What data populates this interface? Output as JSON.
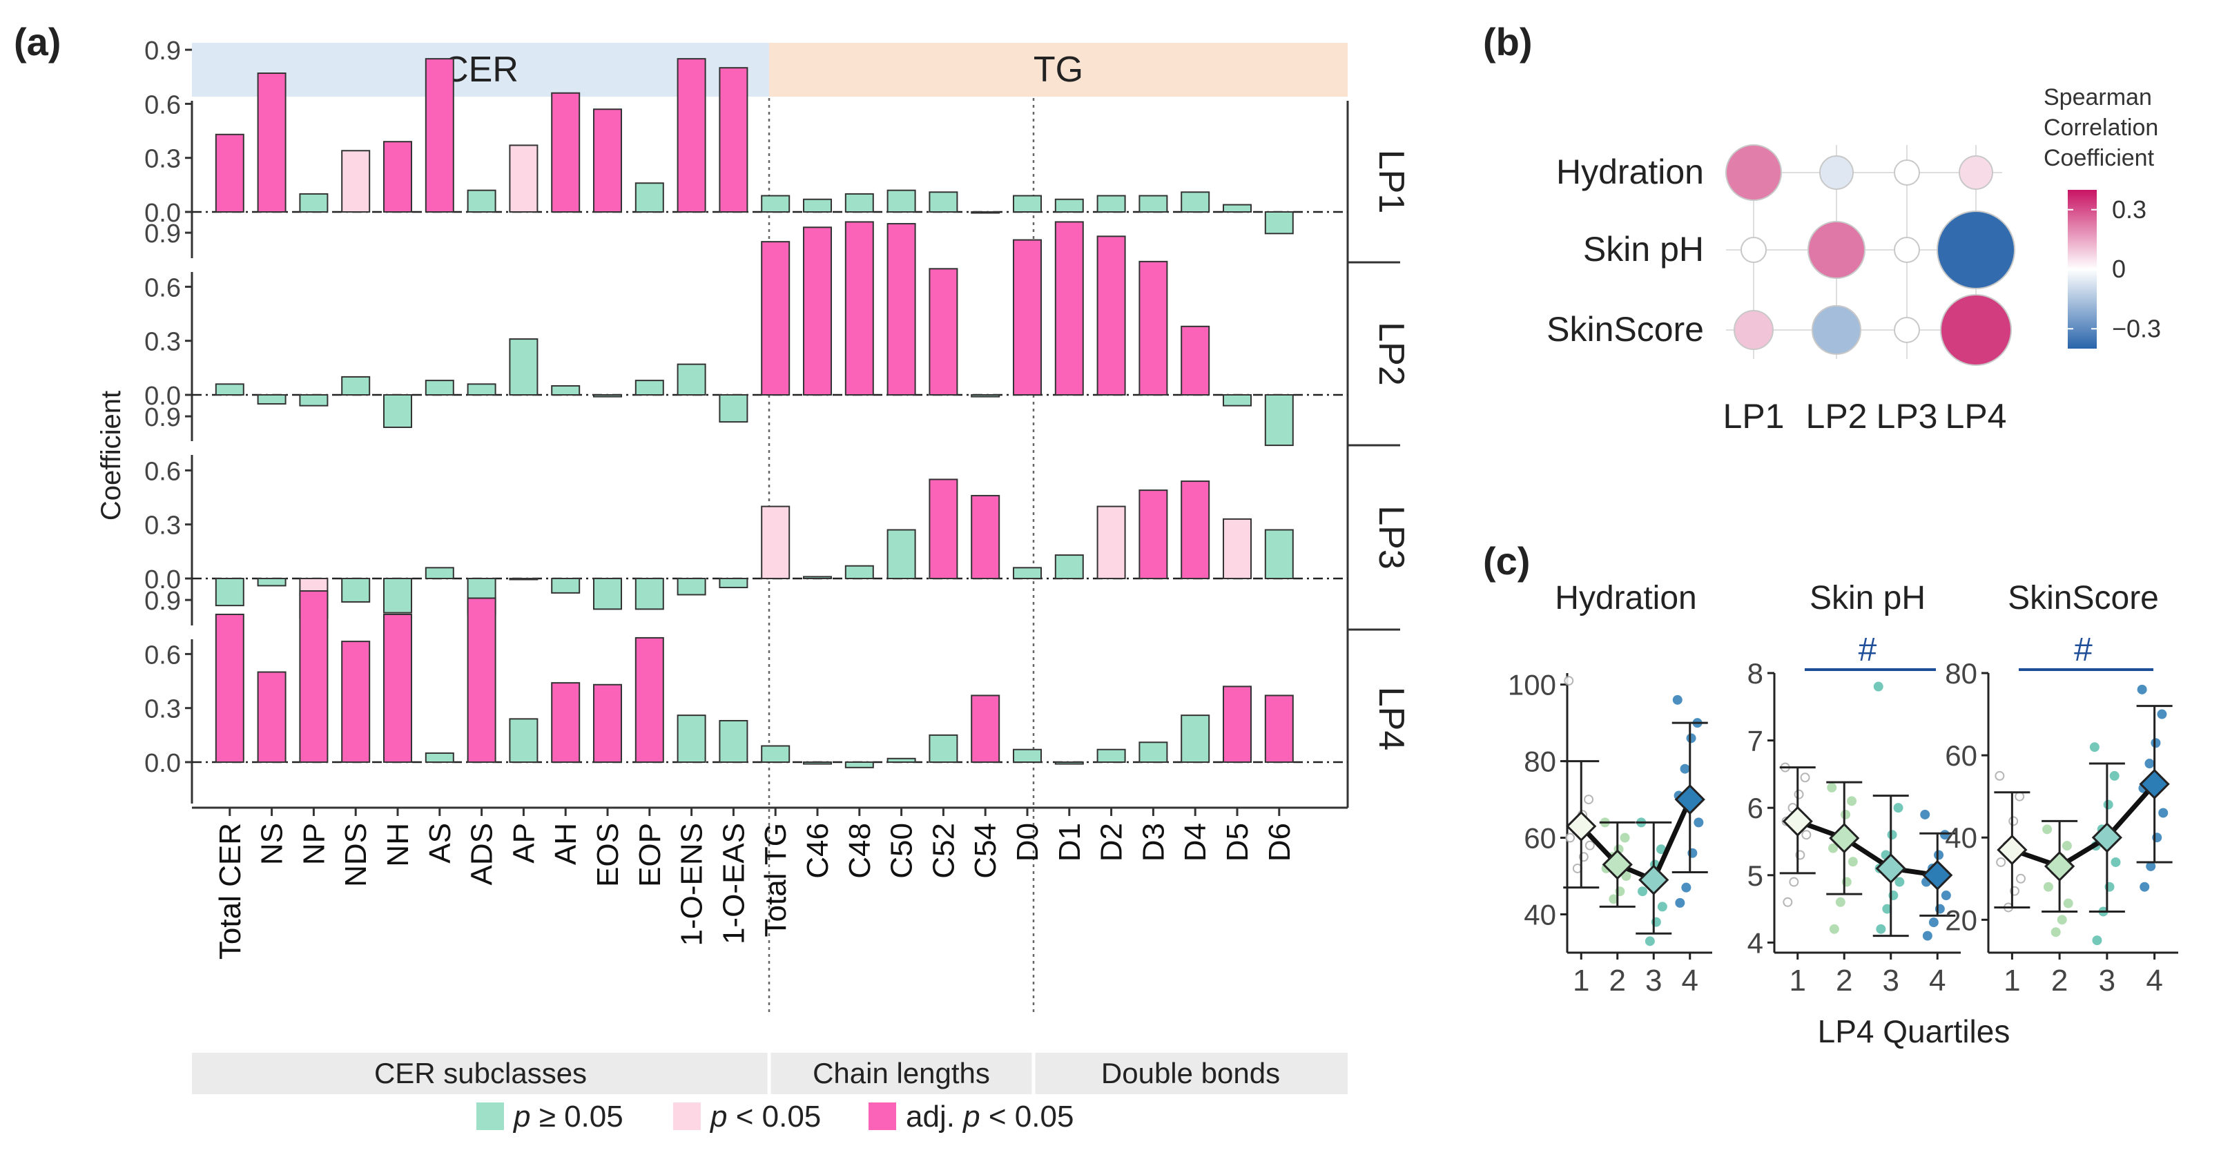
{
  "panel_labels": {
    "a": "(a)",
    "b": "(b)",
    "c": "(c)"
  },
  "colors": {
    "ns": "#9fe0c8",
    "p": "#fdd7e3",
    "adj": "#fb63b8",
    "cer_strip": "#dde8f5",
    "tg_strip": "#fbe3d2",
    "bottom_strip": "#ebebeb",
    "hash": "#1f4e99"
  },
  "legend": {
    "items": [
      {
        "key": "ns",
        "pre": "p",
        "post": " ≥ 0.05"
      },
      {
        "key": "p",
        "pre": "p",
        "post": " < 0.05"
      },
      {
        "key": "adj",
        "pre": "adj. p",
        "post": " < 0.05"
      }
    ]
  },
  "chart_data": [
    {
      "id": "a",
      "type": "bar",
      "ylabel": "Coefficient",
      "ylim": [
        -0.25,
        1.0
      ],
      "yticks": [
        "0.9",
        "0.6",
        "0.3",
        "0.0"
      ],
      "top_strips": [
        "CER",
        "TG"
      ],
      "bottom_strips": [
        "CER subclasses",
        "Chain lengths",
        "Double bonds"
      ],
      "categories": [
        "Total CER",
        "NS",
        "NP",
        "NDS",
        "NH",
        "AS",
        "ADS",
        "AP",
        "AH",
        "EOS",
        "EOP",
        "1-O-ENS",
        "1-O-EAS",
        "Total TG",
        "C46",
        "C48",
        "C50",
        "C52",
        "C54",
        "D0",
        "D1",
        "D2",
        "D3",
        "D4",
        "D5",
        "D6"
      ],
      "series": [
        {
          "name": "LP1",
          "values": [
            0.43,
            0.77,
            0.1,
            0.34,
            0.39,
            0.85,
            0.12,
            0.37,
            0.66,
            0.57,
            0.16,
            0.85,
            0.8,
            0.09,
            0.07,
            0.1,
            0.12,
            0.11,
            0.0,
            0.09,
            0.07,
            0.09,
            0.09,
            0.11,
            0.04,
            -0.12
          ],
          "sig": [
            "adj",
            "adj",
            "ns",
            "p",
            "adj",
            "adj",
            "ns",
            "p",
            "adj",
            "adj",
            "ns",
            "adj",
            "adj",
            "ns",
            "ns",
            "ns",
            "ns",
            "ns",
            "ns",
            "ns",
            "ns",
            "ns",
            "ns",
            "ns",
            "ns",
            "ns"
          ]
        },
        {
          "name": "LP2",
          "values": [
            0.06,
            -0.05,
            -0.06,
            0.1,
            -0.18,
            0.08,
            0.06,
            0.31,
            0.05,
            -0.01,
            0.08,
            0.17,
            -0.15,
            0.85,
            0.93,
            0.96,
            0.95,
            0.7,
            -0.01,
            0.86,
            0.96,
            0.88,
            0.74,
            0.38,
            -0.06,
            -0.28
          ],
          "sig": [
            "ns",
            "ns",
            "ns",
            "ns",
            "ns",
            "ns",
            "ns",
            "ns",
            "ns",
            "ns",
            "ns",
            "ns",
            "ns",
            "adj",
            "adj",
            "adj",
            "adj",
            "adj",
            "ns",
            "adj",
            "adj",
            "adj",
            "adj",
            "adj",
            "ns",
            "ns"
          ]
        },
        {
          "name": "LP3",
          "values": [
            -0.15,
            -0.04,
            -0.22,
            -0.13,
            -0.19,
            0.06,
            -0.2,
            0.0,
            -0.08,
            -0.17,
            -0.17,
            -0.09,
            -0.05,
            0.4,
            0.01,
            0.07,
            0.27,
            0.55,
            0.46,
            0.06,
            0.13,
            0.4,
            0.49,
            0.54,
            0.33,
            0.27
          ],
          "sig": [
            "ns",
            "ns",
            "p",
            "ns",
            "ns",
            "ns",
            "ns",
            "ns",
            "ns",
            "ns",
            "ns",
            "ns",
            "ns",
            "p",
            "ns",
            "ns",
            "ns",
            "adj",
            "adj",
            "ns",
            "ns",
            "p",
            "adj",
            "adj",
            "p",
            "ns"
          ]
        },
        {
          "name": "LP4",
          "values": [
            0.82,
            0.5,
            0.95,
            0.67,
            0.82,
            0.05,
            0.91,
            0.24,
            0.44,
            0.43,
            0.69,
            0.26,
            0.23,
            0.09,
            -0.01,
            -0.03,
            0.02,
            0.15,
            0.37,
            0.07,
            -0.01,
            0.07,
            0.11,
            0.26,
            0.42,
            0.37
          ],
          "sig": [
            "adj",
            "adj",
            "adj",
            "adj",
            "adj",
            "ns",
            "adj",
            "ns",
            "adj",
            "adj",
            "adj",
            "ns",
            "ns",
            "ns",
            "ns",
            "ns",
            "ns",
            "ns",
            "adj",
            "ns",
            "ns",
            "ns",
            "ns",
            "ns",
            "adj",
            "adj"
          ]
        }
      ]
    },
    {
      "id": "b",
      "type": "heatmap",
      "title": "Spearman Correlation Coefficient",
      "rows": [
        "Hydration",
        "Skin pH",
        "SkinScore"
      ],
      "columns": [
        "LP1",
        "LP2",
        "LP3",
        "LP4"
      ],
      "values": [
        [
          0.22,
          -0.06,
          0.0,
          0.06
        ],
        [
          0.0,
          0.23,
          0.0,
          -0.38
        ],
        [
          0.1,
          -0.17,
          0.0,
          0.33
        ]
      ],
      "colorbar_range": [
        -0.4,
        0.4
      ],
      "colorbar_ticks": [
        {
          "value": 0.3,
          "label": "0.3"
        },
        {
          "value": 0,
          "label": "0"
        },
        {
          "value": -0.3,
          "label": "−0.3"
        }
      ]
    },
    {
      "id": "c",
      "type": "scatter",
      "xlabel": "LP4 Quartiles",
      "panels": [
        {
          "title": "Hydration",
          "ylim": [
            30,
            103
          ],
          "yticks": [
            40,
            60,
            80,
            100
          ],
          "significance": "",
          "means": [
            63,
            53,
            49,
            70
          ],
          "error_low": [
            47,
            42,
            35,
            51
          ],
          "error_high": [
            80,
            64,
            64,
            90
          ],
          "points": [
            [
              101,
              70,
              66,
              62,
              60,
              58,
              55,
              52
            ],
            [
              64,
              60,
              57,
              55,
              52,
              50,
              46,
              44
            ],
            [
              64,
              57,
              53,
              50,
              46,
              42,
              38,
              33
            ],
            [
              96,
              90,
              86,
              78,
              71,
              64,
              56,
              47,
              43
            ]
          ]
        },
        {
          "title": "Skin pH",
          "ylim": [
            3.85,
            8.0
          ],
          "yticks": [
            4,
            5,
            6,
            7,
            8
          ],
          "significance": "#",
          "means": [
            5.8,
            5.55,
            5.1,
            5.0
          ],
          "error_low": [
            5.03,
            4.72,
            4.1,
            4.4
          ],
          "error_high": [
            6.6,
            6.38,
            6.18,
            5.62
          ],
          "points": [
            [
              6.6,
              6.45,
              6.2,
              6.0,
              5.8,
              5.6,
              5.3,
              4.9,
              4.6
            ],
            [
              6.3,
              6.1,
              5.9,
              5.6,
              5.4,
              5.2,
              4.9,
              4.6,
              4.2
            ],
            [
              7.8,
              6.0,
              5.6,
              5.3,
              5.1,
              4.9,
              4.7,
              4.5,
              4.2
            ],
            [
              5.9,
              5.6,
              5.3,
              5.1,
              4.9,
              4.7,
              4.5,
              4.3,
              4.1
            ]
          ]
        },
        {
          "title": "SkinScore",
          "ylim": [
            12,
            80
          ],
          "yticks": [
            20,
            40,
            60,
            80
          ],
          "significance": "#",
          "means": [
            37,
            33,
            40,
            53
          ],
          "error_low": [
            23,
            22,
            22,
            34
          ],
          "error_high": [
            51,
            44,
            58,
            72
          ],
          "points": [
            [
              55,
              50,
              44,
              38,
              34,
              30,
              27,
              23
            ],
            [
              42,
              38,
              35,
              32,
              28,
              24,
              20,
              17
            ],
            [
              62,
              55,
              48,
              42,
              38,
              34,
              28,
              22,
              15
            ],
            [
              76,
              70,
              63,
              58,
              52,
              46,
              40,
              33,
              28
            ]
          ]
        }
      ]
    }
  ]
}
